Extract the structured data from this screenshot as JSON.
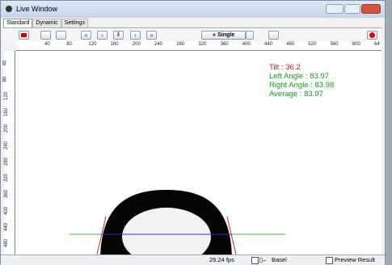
{
  "window": {
    "title": "Live Window"
  },
  "tabs": [
    "Standard",
    "Dynamic",
    "Settings"
  ],
  "toolbar": {
    "mode_button": "Single"
  },
  "ruler": {
    "top": [
      "40",
      "80",
      "120",
      "160",
      "200",
      "240",
      "280",
      "320",
      "360",
      "400",
      "440",
      "480",
      "520",
      "560",
      "600",
      "64"
    ],
    "left": [
      "40",
      "80",
      "120",
      "160",
      "200",
      "240",
      "280",
      "320",
      "360",
      "400",
      "440",
      "480"
    ]
  },
  "overlay": {
    "tilt": "Tilt : 36.2",
    "left_angle": "Left Angle : 83.97",
    "right_angle": "Right Angle : 83.98",
    "average": "Average : 83.97"
  },
  "status": {
    "fps": "29.24 fps",
    "baseline": "Basel",
    "preview": "Preview Result"
  }
}
